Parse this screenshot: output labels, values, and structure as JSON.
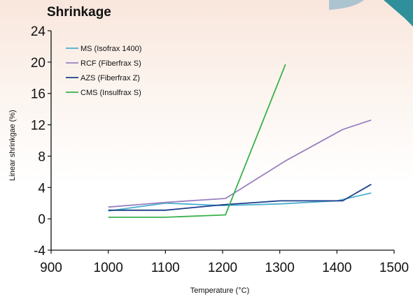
{
  "chart_data": {
    "type": "line",
    "title": "Shrinkage",
    "xlabel": "Temperature (°C)",
    "ylabel": "Linear shrinkgae (%)",
    "xlim": [
      900,
      1500
    ],
    "ylim": [
      -4,
      24
    ],
    "xticks": [
      900,
      1000,
      1100,
      1200,
      1300,
      1400,
      1500
    ],
    "yticks": [
      24,
      20,
      16,
      12,
      8,
      4,
      0,
      -4
    ],
    "grid": false,
    "legend_position": "top-left",
    "series": [
      {
        "name": "MS (Isofrax 1400)",
        "color": "#4ab0cf",
        "x": [
          1000,
          1100,
          1200,
          1300,
          1400,
          1460
        ],
        "y": [
          1.0,
          2.0,
          1.7,
          1.9,
          2.3,
          3.3
        ]
      },
      {
        "name": "RCF (Fiberfrax S)",
        "color": "#9b80bf",
        "x": [
          1000,
          1100,
          1205,
          1310,
          1410,
          1460
        ],
        "y": [
          1.5,
          2.1,
          2.6,
          7.4,
          11.4,
          12.6
        ]
      },
      {
        "name": "AZS (Fiberfrax Z)",
        "color": "#1c3e8c",
        "x": [
          1000,
          1100,
          1200,
          1300,
          1410,
          1460
        ],
        "y": [
          1.1,
          1.1,
          1.8,
          2.3,
          2.3,
          4.4
        ]
      },
      {
        "name": "CMS (Insulfrax S)",
        "color": "#38b24a",
        "x": [
          1000,
          1100,
          1205,
          1310
        ],
        "y": [
          0.2,
          0.2,
          0.5,
          19.7
        ]
      }
    ]
  }
}
